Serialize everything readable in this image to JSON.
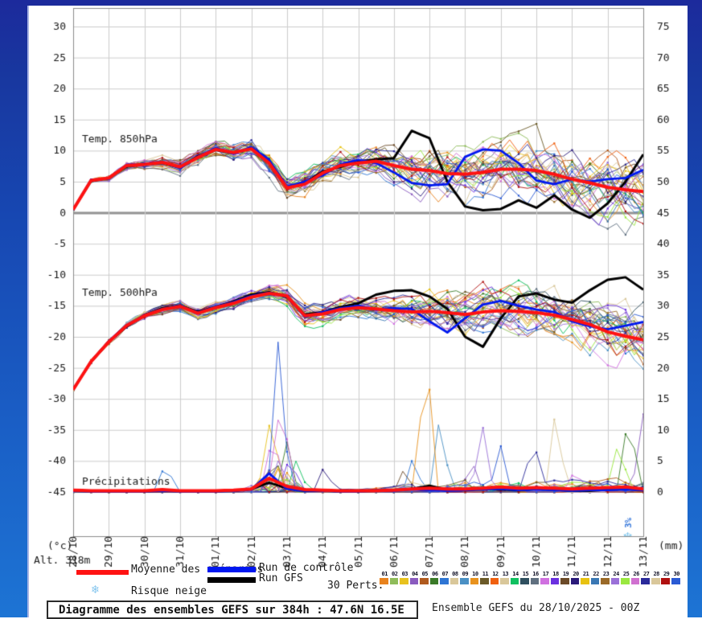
{
  "axis": {
    "celsius_unit": "(°c)",
    "mm_unit": "(mm)",
    "alt_label": "Alt. 318m"
  },
  "legend": {
    "mean_label": "Moyenne des scénarios",
    "control_label": "Run de contrôle",
    "gfs_label": "Run GFS",
    "snow_label": "Risque neige",
    "perts_label": "30 Perts.",
    "mean_color": "#ff1212",
    "control_color": "#0018f0",
    "gfs_color": "#000000",
    "snow_icon_color": "#85c6ee",
    "pert_numbers": [
      "01",
      "02",
      "03",
      "04",
      "05",
      "06",
      "07",
      "08",
      "09",
      "10",
      "11",
      "12",
      "13",
      "14",
      "15",
      "16",
      "17",
      "18",
      "19",
      "20",
      "21",
      "22",
      "23",
      "24",
      "25",
      "26",
      "27",
      "28",
      "29",
      "30"
    ],
    "pert_colors": [
      "#e8821e",
      "#8fbc5a",
      "#e8c21e",
      "#8a5bbf",
      "#b05a1e",
      "#3a7a28",
      "#2e75d4",
      "#d9c79a",
      "#4a90c4",
      "#e8921e",
      "#6b5a28",
      "#f06010",
      "#d9c79a",
      "#10c060",
      "#2f4f5f",
      "#607080",
      "#d070e0",
      "#6a30e0",
      "#6b4a28",
      "#2a1a7a",
      "#e8c210",
      "#3a78b4",
      "#9a6a28",
      "#9a70d8",
      "#9ae840",
      "#d070d0",
      "#2a2a9a",
      "#d9c79a",
      "#b01010",
      "#2a5ad4"
    ]
  },
  "footer": {
    "box_title": "Diagramme des ensembles GEFS sur 384h : 47.6N 16.5E",
    "run_info": "Ensemble GEFS du 28/10/2025 - 00Z"
  },
  "chart_data": {
    "type": "line",
    "title": "Diagramme des ensembles GEFS sur 384h : 47.6N 16.5E",
    "run": "Ensemble GEFS du 28/10/2025 - 00Z",
    "members_count": 30,
    "x_dates": [
      "28/10",
      "29/10",
      "30/10",
      "31/10",
      "01/11",
      "02/11",
      "03/11",
      "04/11",
      "05/11",
      "06/11",
      "07/11",
      "08/11",
      "09/11",
      "10/11",
      "11/11",
      "12/11",
      "13/11"
    ],
    "y_left_ticks": [
      30,
      25,
      20,
      15,
      10,
      5,
      0,
      -5,
      -10,
      -15,
      -20,
      -25,
      -30,
      -35,
      -40,
      -45
    ],
    "y_right_ticks": [
      75,
      70,
      65,
      60,
      55,
      50,
      45,
      40,
      35,
      30,
      25,
      20,
      15,
      10,
      5,
      0
    ],
    "ylim_left": [
      -45,
      30
    ],
    "ylim_right_mm": [
      0,
      75
    ],
    "grid": true,
    "zero_line_value": 0,
    "step_days": 0.5,
    "snow_marker": {
      "text": "3%",
      "x_day": 15.6,
      "color": "#3a7adc"
    },
    "panels": [
      {
        "label": "Temp. 850hPa",
        "mean": [
          0.5,
          5.2,
          5.6,
          7.6,
          7.8,
          8.1,
          7.4,
          8.9,
          10.2,
          9.7,
          10.3,
          8.0,
          4.0,
          4.6,
          6.4,
          7.6,
          8.0,
          8.3,
          7.6,
          7.0,
          6.8,
          6.3,
          6.2,
          6.5,
          7.0,
          7.0,
          6.8,
          6.2,
          5.4,
          4.8,
          4.1,
          3.7,
          3.4
        ],
        "control": [
          0.5,
          5.3,
          5.5,
          7.7,
          7.9,
          8.2,
          7.2,
          9.0,
          10.4,
          9.5,
          10.6,
          8.5,
          4.2,
          5.0,
          6.0,
          7.8,
          8.5,
          8.0,
          6.5,
          4.8,
          4.4,
          4.6,
          9.0,
          10.2,
          10.0,
          8.0,
          5.2,
          4.6,
          5.4,
          5.0,
          5.4,
          5.6,
          6.9
        ],
        "gfs": [
          0.5,
          5.1,
          5.6,
          7.5,
          7.9,
          8.0,
          7.3,
          9.1,
          10.1,
          9.6,
          10.4,
          8.2,
          4.1,
          4.8,
          6.6,
          7.4,
          8.2,
          8.6,
          8.8,
          13.2,
          12.0,
          5.0,
          1.0,
          0.4,
          0.6,
          2.0,
          0.8,
          2.8,
          0.5,
          -0.8,
          1.5,
          5.0,
          9.4
        ],
        "spread_by_day": [
          0.2,
          0.6,
          1.0,
          1.2,
          1.5,
          2.0,
          2.5,
          2.5,
          2.5,
          3.5,
          4.5,
          5.0,
          5.0,
          5.0,
          5.5,
          6.0,
          6.0
        ]
      },
      {
        "label": "Temp. 500hPa",
        "mean": [
          -28.5,
          -24.0,
          -20.8,
          -18.2,
          -16.6,
          -15.6,
          -15.1,
          -16.2,
          -15.3,
          -14.6,
          -13.6,
          -13.0,
          -13.4,
          -16.6,
          -16.3,
          -15.6,
          -15.3,
          -15.5,
          -15.8,
          -16.0,
          -15.9,
          -16.1,
          -16.4,
          -16.0,
          -15.8,
          -15.9,
          -16.1,
          -16.5,
          -17.2,
          -18.0,
          -19.2,
          -19.9,
          -20.5
        ],
        "control": [
          -28.5,
          -24.0,
          -20.7,
          -18.1,
          -16.5,
          -15.5,
          -15.0,
          -16.1,
          -15.2,
          -14.4,
          -13.4,
          -12.9,
          -13.5,
          -16.8,
          -16.0,
          -15.4,
          -15.0,
          -15.6,
          -15.4,
          -15.5,
          -17.5,
          -19.3,
          -17.0,
          -14.8,
          -14.2,
          -15.0,
          -15.6,
          -16.0,
          -17.5,
          -18.3,
          -18.8,
          -18.2,
          -17.6
        ],
        "gfs": [
          -28.5,
          -24.0,
          -20.8,
          -18.3,
          -16.5,
          -15.4,
          -15.0,
          -16.0,
          -15.2,
          -14.3,
          -13.2,
          -12.8,
          -13.6,
          -16.4,
          -16.0,
          -15.2,
          -14.6,
          -13.2,
          -12.6,
          -12.5,
          -13.5,
          -15.5,
          -20.0,
          -21.6,
          -17.0,
          -13.5,
          -13.0,
          -14.0,
          -14.5,
          -12.5,
          -10.8,
          -10.4,
          -12.4
        ],
        "spread_by_day": [
          0.3,
          0.5,
          0.8,
          1.0,
          1.0,
          1.2,
          1.8,
          2.0,
          2.0,
          2.5,
          3.5,
          4.0,
          4.0,
          4.0,
          4.5,
          5.0,
          5.5
        ]
      },
      {
        "label": "Précipitations",
        "baseline_left_value": -45,
        "mm_per_left_unit": 1,
        "mean_mm": [
          0.3,
          0.2,
          0.2,
          0.2,
          0.2,
          0.4,
          0.2,
          0.2,
          0.2,
          0.3,
          0.5,
          2.2,
          0.9,
          0.4,
          0.3,
          0.2,
          0.2,
          0.2,
          0.3,
          0.5,
          0.6,
          0.5,
          0.5,
          0.6,
          0.8,
          0.6,
          0.7,
          0.6,
          0.5,
          0.6,
          0.7,
          0.8,
          0.5
        ],
        "control_mm": [
          0.2,
          0.1,
          0.1,
          0.1,
          0.1,
          0.2,
          0.1,
          0.1,
          0.1,
          0.2,
          0.4,
          3.0,
          0.5,
          0.2,
          0.2,
          0.1,
          0.1,
          0.2,
          0.2,
          0.4,
          0.3,
          0.2,
          0.3,
          0.4,
          0.5,
          0.3,
          0.4,
          0.3,
          0.2,
          0.3,
          0.3,
          0.4,
          0.3
        ],
        "gfs_mm": [
          0.2,
          0.1,
          0.1,
          0.1,
          0.1,
          0.2,
          0.1,
          0.1,
          0.1,
          0.2,
          0.5,
          1.5,
          0.6,
          0.2,
          0.2,
          0.1,
          0.1,
          0.2,
          0.3,
          0.5,
          1.0,
          0.4,
          0.3,
          0.5,
          0.4,
          0.3,
          0.5,
          0.4,
          0.2,
          0.2,
          0.4,
          0.5,
          0.3
        ],
        "spread_mm_by_day": [
          0.1,
          0.1,
          0.2,
          0.1,
          0.1,
          0.4,
          0.4,
          0.2,
          0.2,
          0.5,
          0.8,
          0.8,
          0.8,
          0.8,
          0.8,
          0.9,
          0.8
        ],
        "member_spikes": [
          {
            "x_day": 2.6,
            "mm": 5,
            "member": 6
          },
          {
            "x_day": 5.5,
            "mm": 7,
            "member": 2
          },
          {
            "x_day": 5.6,
            "mm": 10,
            "member": 16
          },
          {
            "x_day": 5.75,
            "mm": 21,
            "member": 29
          },
          {
            "x_day": 5.85,
            "mm": 17,
            "member": 25
          },
          {
            "x_day": 6.0,
            "mm": 8,
            "member": 5
          },
          {
            "x_day": 6.1,
            "mm": 6,
            "member": 17
          },
          {
            "x_day": 6.3,
            "mm": 4,
            "member": 13
          },
          {
            "x_day": 7.05,
            "mm": 4,
            "member": 19
          },
          {
            "x_day": 9.3,
            "mm": 4,
            "member": 18
          },
          {
            "x_day": 9.55,
            "mm": 6,
            "member": 6
          },
          {
            "x_day": 9.9,
            "mm": 24,
            "member": 9
          },
          {
            "x_day": 10.3,
            "mm": 13,
            "member": 8
          },
          {
            "x_day": 11.2,
            "mm": 5,
            "member": 3
          },
          {
            "x_day": 11.5,
            "mm": 10,
            "member": 23
          },
          {
            "x_day": 12.0,
            "mm": 7,
            "member": 29
          },
          {
            "x_day": 12.9,
            "mm": 8,
            "member": 26
          },
          {
            "x_day": 13.55,
            "mm": 13,
            "member": 7
          },
          {
            "x_day": 14.1,
            "mm": 4,
            "member": 16
          },
          {
            "x_day": 15.3,
            "mm": 8,
            "member": 24
          },
          {
            "x_day": 15.6,
            "mm": 14,
            "member": 5
          },
          {
            "x_day": 16.0,
            "mm": 12,
            "member": 3
          }
        ]
      }
    ]
  }
}
